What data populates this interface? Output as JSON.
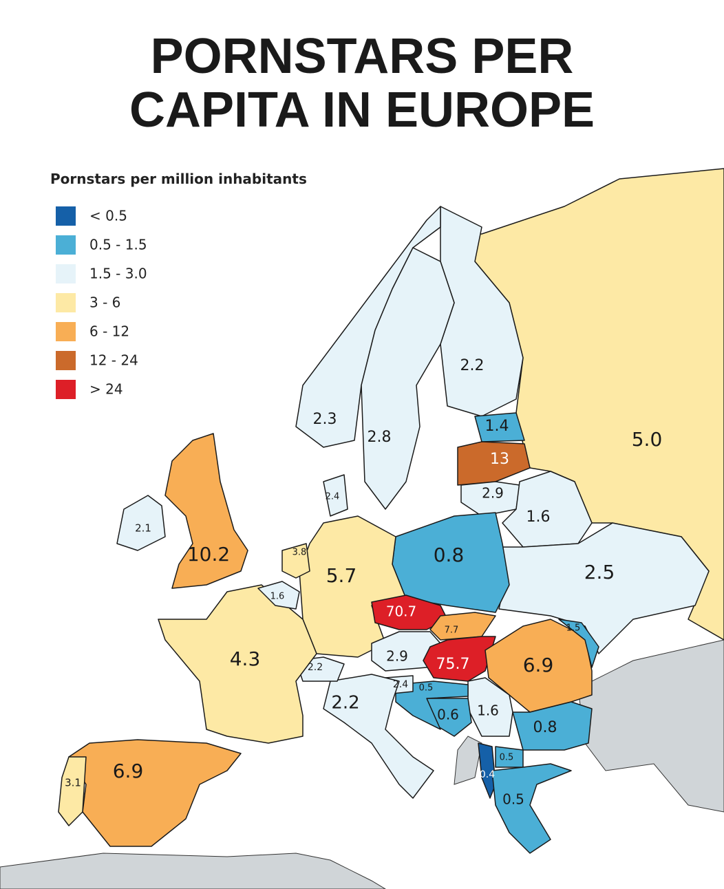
{
  "header": {
    "title_lines": [
      "PORNSTARS PER",
      "CAPITA IN EUROPE"
    ]
  },
  "legend": {
    "title": "Pornstars per million inhabitants",
    "items": [
      {
        "label": "< 0.5",
        "color": "#1560a8"
      },
      {
        "label": "0.5 - 1.5",
        "color": "#4bafd6"
      },
      {
        "label": "1.5 - 3.0",
        "color": "#e6f3f9"
      },
      {
        "label": "3 - 6",
        "color": "#fde9a5"
      },
      {
        "label": "6 - 12",
        "color": "#f8ae55"
      },
      {
        "label": "12 - 24",
        "color": "#cb6a2b"
      },
      {
        "label": "> 24",
        "color": "#dd1f27"
      }
    ]
  },
  "regions": [
    {
      "label": "5.0",
      "class": 3
    },
    {
      "label": "2.2",
      "class": 2
    },
    {
      "label": "2.3",
      "class": 2
    },
    {
      "label": "2.8",
      "class": 2
    },
    {
      "label": "1.4",
      "class": 1
    },
    {
      "label": "13",
      "class": 5
    },
    {
      "label": "2.9",
      "class": 2
    },
    {
      "label": "1.6",
      "class": 2
    },
    {
      "label": "2.5",
      "class": 2
    },
    {
      "label": "0.8",
      "class": 1
    },
    {
      "label": "5.7",
      "class": 3
    },
    {
      "label": "70.7",
      "class": 6
    },
    {
      "label": "7.7",
      "class": 4
    },
    {
      "label": "2.9",
      "class": 2
    },
    {
      "label": "75.7",
      "class": 6
    },
    {
      "label": "6.9",
      "class": 4
    },
    {
      "label": "1.5",
      "class": 1
    },
    {
      "label": "0.8",
      "class": 1
    },
    {
      "label": "1.6",
      "class": 2
    },
    {
      "label": "0.6",
      "class": 1
    },
    {
      "label": "0.5",
      "class": 1
    },
    {
      "label": "2.4",
      "class": 2
    },
    {
      "label": "0.4",
      "class": 0
    },
    {
      "label": "0.5",
      "class": 1
    },
    {
      "label": "0.5",
      "class": 1
    },
    {
      "label": "2.2",
      "class": 2
    },
    {
      "label": "2.2",
      "class": 2
    },
    {
      "label": "4.3",
      "class": 3
    },
    {
      "label": "1.6",
      "class": 2
    },
    {
      "label": "3.8",
      "class": 3
    },
    {
      "label": "10.2",
      "class": 4
    },
    {
      "label": "2.1",
      "class": 2
    },
    {
      "label": "2.4",
      "class": 2
    },
    {
      "label": "6.9",
      "class": 4
    },
    {
      "label": "3.1",
      "class": 3
    }
  ]
}
